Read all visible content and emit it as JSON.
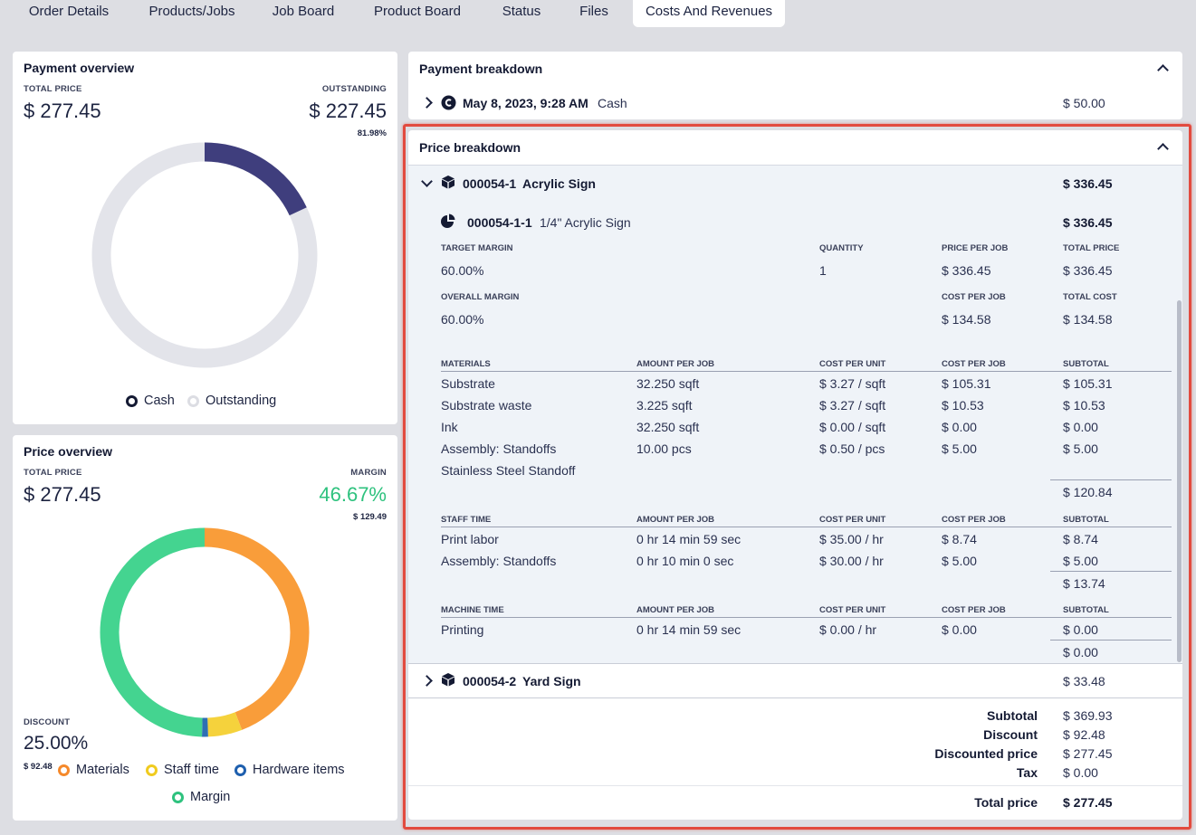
{
  "tabs": [
    "Order Details",
    "Products/Jobs",
    "Job Board",
    "Product Board",
    "Status",
    "Files",
    "Costs And Revenues"
  ],
  "payment_overview": {
    "title": "Payment overview",
    "total_price_label": "TOTAL PRICE",
    "total_price": "$ 277.45",
    "outstanding_label": "OUTSTANDING",
    "outstanding": "$ 227.45",
    "outstanding_pct": "81.98%",
    "cash_fraction": 0.1802,
    "legend": [
      "Cash",
      "Outstanding"
    ],
    "colors": {
      "cash": "#3f3e7d",
      "outstanding": "#e3e4ea"
    }
  },
  "price_overview": {
    "title": "Price overview",
    "total_price_label": "TOTAL PRICE",
    "total_price": "$ 277.45",
    "margin_label": "MARGIN",
    "margin_pct": "46.67%",
    "margin_value": "$ 129.49",
    "discount_label": "DISCOUNT",
    "discount_pct": "25.00%",
    "discount_value": "$ 92.48",
    "legend": [
      "Materials",
      "Staff time",
      "Hardware items",
      "Margin"
    ],
    "segments": [
      {
        "name": "Materials",
        "value": 115.31,
        "color": "#f99d3a"
      },
      {
        "name": "Staff time",
        "value": 13.74,
        "color": "#f5d23c"
      },
      {
        "name": "Hardware items",
        "value": 2.5,
        "color": "#2f6fb3"
      },
      {
        "name": "Margin",
        "value": 129.49,
        "color": "#44d490"
      }
    ]
  },
  "payment_breakdown": {
    "title": "Payment breakdown",
    "date": "May 8, 2023, 9:28 AM",
    "method": "Cash",
    "amount": "$ 50.00"
  },
  "price_breakdown": {
    "title": "Price breakdown",
    "product1": {
      "id": "000054-1",
      "name": "Acrylic Sign",
      "total": "$ 336.45"
    },
    "job": {
      "id": "000054-1-1",
      "name": "1/4\" Acrylic Sign",
      "total": "$ 336.45"
    },
    "summary": {
      "target_margin_label": "TARGET MARGIN",
      "target_margin": "60.00%",
      "quantity_label": "QUANTITY",
      "quantity": "1",
      "price_per_job_label": "PRICE PER JOB",
      "price_per_job": "$ 336.45",
      "total_price_label": "TOTAL PRICE",
      "total_price": "$ 336.45",
      "overall_margin_label": "OVERALL MARGIN",
      "overall_margin": "60.00%",
      "cost_per_job_label": "COST PER JOB",
      "cost_per_job": "$ 134.58",
      "total_cost_label": "TOTAL COST",
      "total_cost": "$ 134.58"
    },
    "materials": {
      "headers": [
        "MATERIALS",
        "AMOUNT PER JOB",
        "COST PER UNIT",
        "COST PER JOB",
        "SUBTOTAL"
      ],
      "rows": [
        [
          "Substrate",
          "32.250 sqft",
          "$ 3.27 / sqft",
          "$ 105.31",
          "$ 105.31"
        ],
        [
          "Substrate waste",
          "3.225 sqft",
          "$ 3.27 / sqft",
          "$ 10.53",
          "$ 10.53"
        ],
        [
          "Ink",
          "32.250 sqft",
          "$ 0.00 / sqft",
          "$ 0.00",
          "$ 0.00"
        ],
        [
          "Assembly: Standoffs",
          "10.00 pcs",
          "$ 0.50 / pcs",
          "$ 5.00",
          "$ 5.00"
        ],
        [
          "Stainless Steel Standoff",
          "",
          "",
          "",
          ""
        ]
      ],
      "total": "$ 120.84"
    },
    "staff": {
      "headers": [
        "STAFF TIME",
        "AMOUNT PER JOB",
        "COST PER UNIT",
        "COST PER JOB",
        "SUBTOTAL"
      ],
      "rows": [
        [
          "Print labor",
          "0 hr 14 min 59 sec",
          "$ 35.00 / hr",
          "$ 8.74",
          "$ 8.74"
        ],
        [
          "Assembly: Standoffs",
          "0 hr 10 min 0 sec",
          "$ 30.00 / hr",
          "$ 5.00",
          "$ 5.00"
        ]
      ],
      "total": "$ 13.74"
    },
    "machine": {
      "headers": [
        "MACHINE TIME",
        "AMOUNT PER JOB",
        "COST PER UNIT",
        "COST PER JOB",
        "SUBTOTAL"
      ],
      "rows": [
        [
          "Printing",
          "0 hr 14 min 59 sec",
          "$ 0.00 / hr",
          "$ 0.00",
          "$ 0.00"
        ]
      ],
      "total": "$ 0.00"
    },
    "product2": {
      "id": "000054-2",
      "name": "Yard Sign",
      "total": "$ 33.48"
    },
    "totals": {
      "subtotal_label": "Subtotal",
      "subtotal": "$ 369.93",
      "discount_label": "Discount",
      "discount": "$ 92.48",
      "discounted_label": "Discounted price",
      "discounted": "$ 277.45",
      "tax_label": "Tax",
      "tax": "$ 0.00",
      "total_label": "Total price",
      "total": "$ 277.45"
    }
  }
}
